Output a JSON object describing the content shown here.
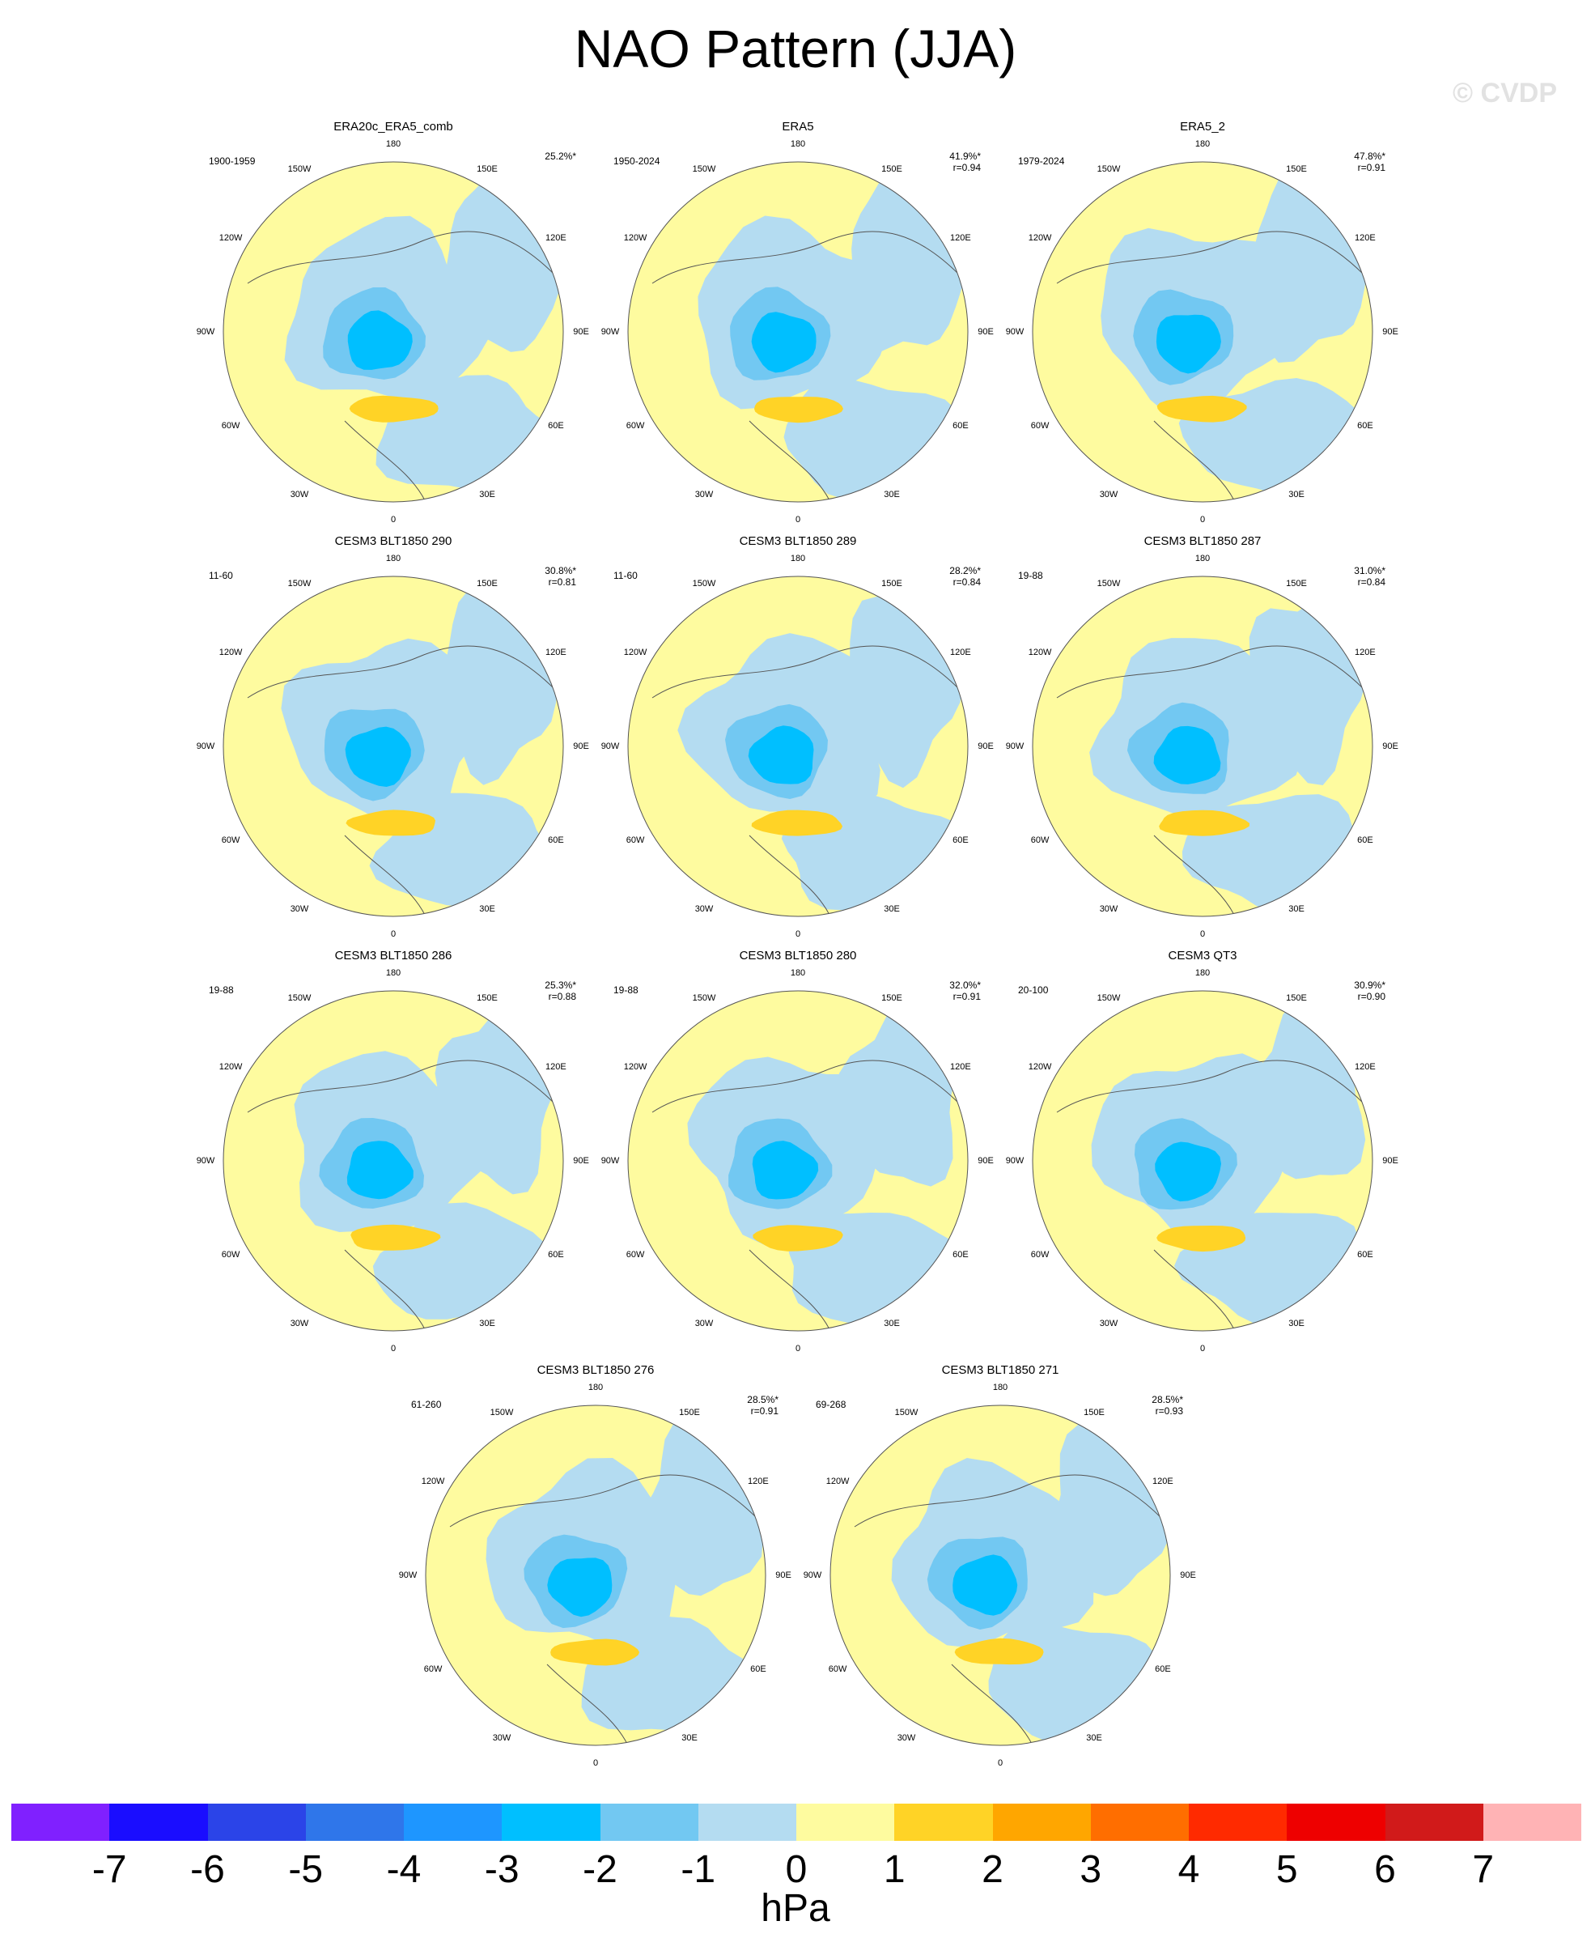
{
  "title": "NAO Pattern (JJA)",
  "watermark": "© CVDP",
  "units": "hPa",
  "lon_labels": [
    "180",
    "150E",
    "120E",
    "90E",
    "60E",
    "30E",
    "0",
    "30W",
    "60W",
    "90W",
    "120W",
    "150W"
  ],
  "chart_data": {
    "type": "heatmap",
    "description_units": "hPa",
    "colorbar": {
      "levels": [
        "-7",
        "-6",
        "-5",
        "-4",
        "-3",
        "-2",
        "-1",
        "0",
        "1",
        "2",
        "3",
        "4",
        "5",
        "6",
        "7"
      ],
      "colors": [
        "#8020ff",
        "#1a0dff",
        "#2b44e8",
        "#2f76ea",
        "#1e96ff",
        "#00bfff",
        "#72c8f2",
        "#b4dcf1",
        "#fefb9f",
        "#ffd326",
        "#ffa600",
        "#ff6e00",
        "#ff2a00",
        "#ee0000",
        "#d11a1a",
        "#ffb3b5"
      ]
    },
    "panels": [
      {
        "title": "ERA20c_ERA5_comb",
        "period": "1900-1959",
        "pct": "25.2%*",
        "r": ""
      },
      {
        "title": "ERA5",
        "period": "1950-2024",
        "pct": "41.9%*",
        "r": "r=0.94"
      },
      {
        "title": "ERA5_2",
        "period": "1979-2024",
        "pct": "47.8%*",
        "r": "r=0.91"
      },
      {
        "title": "CESM3 BLT1850 290",
        "period": "11-60",
        "pct": "30.8%*",
        "r": "r=0.81"
      },
      {
        "title": "CESM3 BLT1850 289",
        "period": "11-60",
        "pct": "28.2%*",
        "r": "r=0.84"
      },
      {
        "title": "CESM3 BLT1850 287",
        "period": "19-88",
        "pct": "31.0%*",
        "r": "r=0.84"
      },
      {
        "title": "CESM3 BLT1850 286",
        "period": "19-88",
        "pct": "25.3%*",
        "r": "r=0.88"
      },
      {
        "title": "CESM3 BLT1850 280",
        "period": "19-88",
        "pct": "32.0%*",
        "r": "r=0.91"
      },
      {
        "title": "CESM3 QT3",
        "period": "20-100",
        "pct": "30.9%*",
        "r": "r=0.90"
      },
      {
        "title": "CESM3 BLT1850 276",
        "period": "61-260",
        "pct": "28.5%*",
        "r": "r=0.91"
      },
      {
        "title": "CESM3 BLT1850 271",
        "period": "69-268",
        "pct": "28.5%*",
        "r": "r=0.93"
      }
    ]
  }
}
